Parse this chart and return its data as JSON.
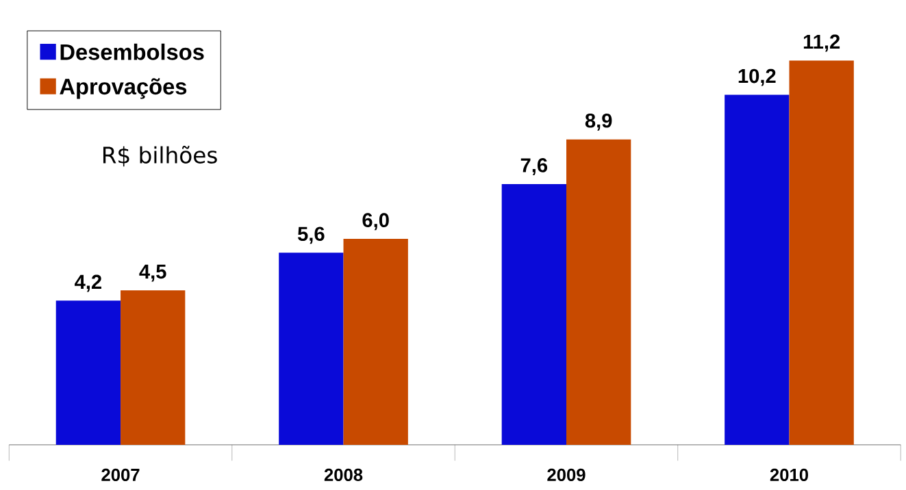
{
  "chart_data": {
    "type": "bar",
    "categories": [
      "2007",
      "2008",
      "2009",
      "2010"
    ],
    "series": [
      {
        "name": "Desembolsos",
        "color": "#0a0ad8",
        "values": [
          4.2,
          5.6,
          7.6,
          10.2
        ],
        "value_labels": [
          "4,2",
          "5,6",
          "7,6",
          "10,2"
        ]
      },
      {
        "name": "Aprovações",
        "color": "#c84a00",
        "values": [
          4.5,
          6.0,
          8.9,
          11.2
        ],
        "value_labels": [
          "4,5",
          "6,0",
          "8,9",
          "11,2"
        ]
      }
    ],
    "annotations": [
      "R$ bilhões"
    ],
    "legend": "top left"
  }
}
